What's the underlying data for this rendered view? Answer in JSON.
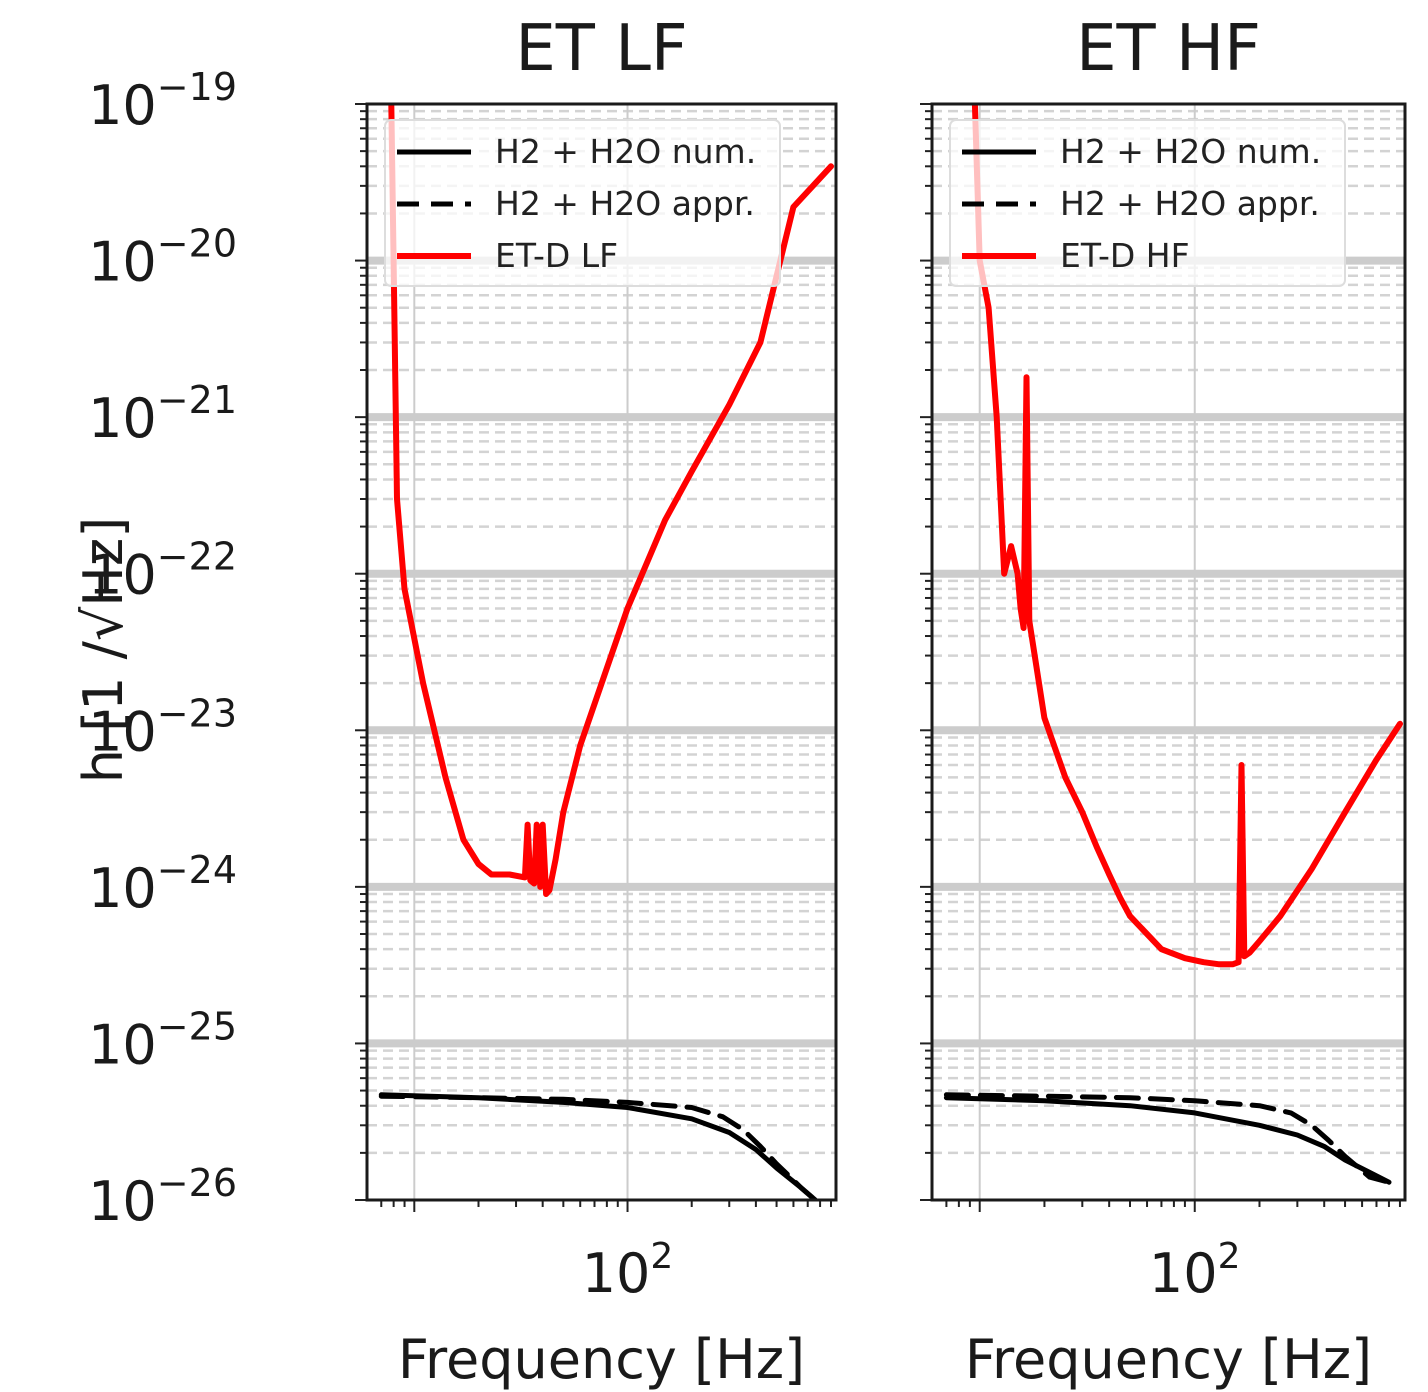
{
  "figure": {
    "ylabel": "h [1 /√Hz]"
  },
  "chart_data": [
    {
      "type": "line",
      "title": "ET LF",
      "xlabel": "Frequency [Hz]",
      "ylabel": "h [1 /√Hz]",
      "xscale": "log",
      "yscale": "log",
      "xlim": [
        6,
        950
      ],
      "ylim": [
        1e-26,
        1e-19
      ],
      "x_ticks": [
        {
          "value": 100,
          "base": "10",
          "exp": "2"
        }
      ],
      "y_ticks": [
        {
          "value": 1e-19,
          "base": "10",
          "exp": "−19"
        },
        {
          "value": 1e-20,
          "base": "10",
          "exp": "−20"
        },
        {
          "value": 1e-21,
          "base": "10",
          "exp": "−21"
        },
        {
          "value": 1e-22,
          "base": "10",
          "exp": "−22"
        },
        {
          "value": 1e-23,
          "base": "10",
          "exp": "−23"
        },
        {
          "value": 1e-24,
          "base": "10",
          "exp": "−24"
        },
        {
          "value": 1e-25,
          "base": "10",
          "exp": "−25"
        },
        {
          "value": 1e-26,
          "base": "10",
          "exp": "−26"
        }
      ],
      "grid": true,
      "legend_position": "top-left",
      "series": [
        {
          "name": "H2 + H2O num.",
          "color": "#000000",
          "style": "solid",
          "x": [
            7,
            20,
            50,
            100,
            200,
            300,
            400,
            500,
            650,
            760
          ],
          "y": [
            4.7e-26,
            4.5e-26,
            4.2e-26,
            3.9e-26,
            3.3e-26,
            2.7e-26,
            2.1e-26,
            1.6e-26,
            1.2e-26,
            1e-26
          ]
        },
        {
          "name": "H2 + H2O appr.",
          "color": "#000000",
          "style": "dashed",
          "x": [
            7,
            20,
            50,
            100,
            200,
            280,
            350,
            420,
            500,
            580,
            650,
            760
          ],
          "y": [
            4.6e-26,
            4.5e-26,
            4.4e-26,
            4.2e-26,
            3.9e-26,
            3.4e-26,
            2.8e-26,
            2.2e-26,
            1.7e-26,
            1.4e-26,
            1.2e-26,
            1e-26
          ]
        },
        {
          "name": "ET-D LF",
          "color": "#ff0000",
          "style": "solid",
          "x": [
            7.8,
            8,
            8.3,
            9,
            11,
            14,
            17,
            20,
            23,
            28,
            33,
            34,
            35,
            36.5,
            37.5,
            39,
            40,
            41.5,
            43,
            46,
            50,
            60,
            80,
            100,
            150,
            200,
            300,
            420,
            600,
            900
          ],
          "y": [
            1e-19,
            1e-20,
            3e-22,
            8e-23,
            2e-23,
            5e-24,
            2e-24,
            1.4e-24,
            1.2e-24,
            1.2e-24,
            1.15e-24,
            2.5e-24,
            1.1e-24,
            1.05e-24,
            2.5e-24,
            1e-24,
            2.5e-24,
            9e-25,
            9.5e-25,
            1.5e-24,
            3e-24,
            8e-24,
            2.5e-23,
            6e-23,
            2.2e-22,
            4.5e-22,
            1.2e-21,
            3e-21,
            2.2e-20,
            4e-20
          ]
        }
      ]
    },
    {
      "type": "line",
      "title": "ET HF",
      "xlabel": "Frequency [Hz]",
      "xscale": "log",
      "yscale": "log",
      "xlim": [
        6,
        950
      ],
      "ylim": [
        1e-26,
        1e-19
      ],
      "x_ticks": [
        {
          "value": 100,
          "base": "10",
          "exp": "2"
        }
      ],
      "grid": true,
      "legend_position": "top-left",
      "series": [
        {
          "name": "H2 + H2O num.",
          "color": "#000000",
          "style": "solid",
          "x": [
            7,
            20,
            50,
            100,
            200,
            300,
            400,
            500,
            650,
            800
          ],
          "y": [
            4.5e-26,
            4.3e-26,
            4e-26,
            3.6e-26,
            3e-26,
            2.6e-26,
            2.2e-26,
            1.8e-26,
            1.5e-26,
            1.3e-26
          ]
        },
        {
          "name": "H2 + H2O appr.",
          "color": "#000000",
          "style": "dashed",
          "x": [
            7,
            20,
            50,
            100,
            200,
            280,
            350,
            420,
            500,
            580,
            650,
            800
          ],
          "y": [
            4.7e-26,
            4.6e-26,
            4.5e-26,
            4.3e-26,
            4e-26,
            3.6e-26,
            3e-26,
            2.4e-26,
            1.9e-26,
            1.6e-26,
            1.4e-26,
            1.3e-26
          ]
        },
        {
          "name": "ET-D HF",
          "color": "#ff0000",
          "style": "solid",
          "x": [
            9.5,
            10,
            11,
            12,
            13,
            14,
            15,
            15.5,
            16,
            16.5,
            17,
            20,
            25,
            30,
            35,
            40,
            45,
            50,
            60,
            70,
            90,
            110,
            130,
            150,
            160,
            165,
            170,
            180,
            200,
            250,
            350,
            500,
            700,
            900
          ],
          "y": [
            1e-19,
            1e-20,
            5e-21,
            1e-21,
            1e-22,
            1.5e-22,
            1e-22,
            6e-23,
            4.5e-23,
            1.8e-21,
            5e-23,
            1.2e-23,
            5e-24,
            3e-24,
            1.8e-24,
            1.2e-24,
            8.5e-25,
            6.5e-25,
            5e-25,
            4e-25,
            3.5e-25,
            3.3e-25,
            3.2e-25,
            3.2e-25,
            3.3e-25,
            6e-24,
            3.6e-25,
            3.8e-25,
            4.5e-25,
            6.5e-25,
            1.3e-24,
            3e-24,
            6.5e-24,
            1.1e-23
          ]
        }
      ]
    }
  ]
}
